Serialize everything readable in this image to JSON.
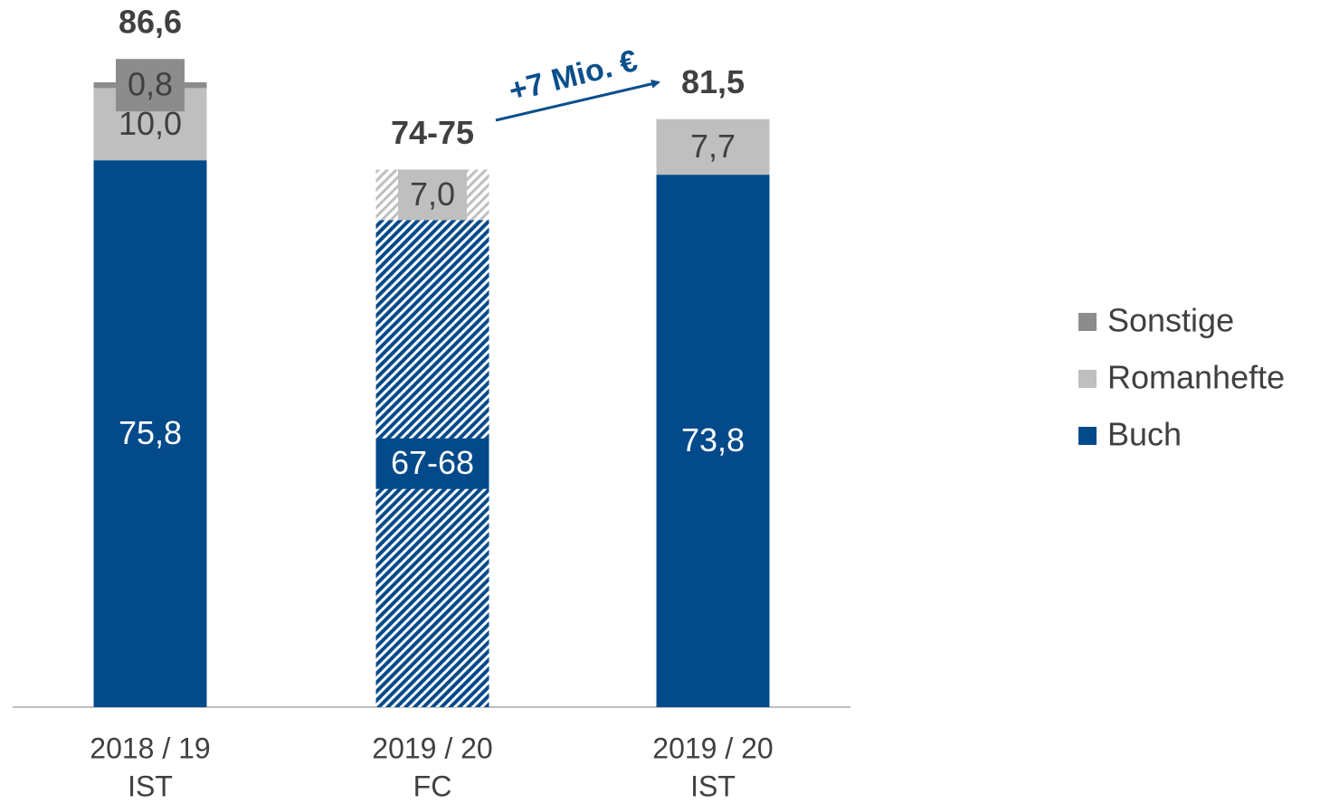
{
  "chart_data": {
    "type": "stacked-bar",
    "categories": [
      [
        "2018 / 19",
        "IST"
      ],
      [
        "2019 / 20",
        "FC"
      ],
      [
        "2019 / 20",
        "IST"
      ]
    ],
    "hatched": [
      false,
      true,
      false
    ],
    "series": [
      {
        "name": "Buch",
        "color": "#034a8a",
        "values": [
          75.8,
          67.5,
          73.8
        ],
        "value_labels": [
          "75,8",
          "67-68",
          "73,8"
        ]
      },
      {
        "name": "Romanhefte",
        "color": "#bfbfbf",
        "values": [
          10.0,
          7.0,
          7.7
        ],
        "value_labels": [
          "10,0",
          "7,0",
          "7,7"
        ]
      },
      {
        "name": "Sonstige",
        "color": "#8c8c8c",
        "values": [
          0.8,
          null,
          null
        ],
        "value_labels": [
          "0,8",
          null,
          null
        ]
      }
    ],
    "totals": [
      86.6,
      74.5,
      81.5
    ],
    "total_labels": [
      "86,6",
      "74-75",
      "81,5"
    ],
    "annotation": "+7 Mio. €",
    "ylim": [
      0,
      95
    ],
    "legend": "right"
  }
}
